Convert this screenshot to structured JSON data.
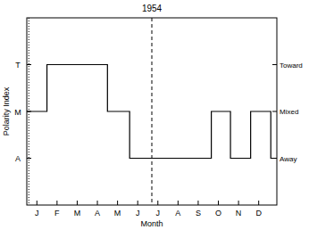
{
  "chart_data": {
    "type": "line",
    "title": "1954",
    "x_label": "Month",
    "y_label": "Polarity Index",
    "xlim": [
      0,
      12.4
    ],
    "xticks": [
      {
        "value": 0.5,
        "label": "J"
      },
      {
        "value": 1.5,
        "label": "F"
      },
      {
        "value": 2.5,
        "label": "M"
      },
      {
        "value": 3.5,
        "label": "A"
      },
      {
        "value": 4.5,
        "label": "M"
      },
      {
        "value": 5.5,
        "label": "J"
      },
      {
        "value": 6.5,
        "label": "J"
      },
      {
        "value": 7.5,
        "label": "A"
      },
      {
        "value": 8.5,
        "label": "S"
      },
      {
        "value": 9.5,
        "label": "O"
      },
      {
        "value": 10.5,
        "label": "N"
      },
      {
        "value": 11.5,
        "label": "D"
      }
    ],
    "ylim": [
      0,
      4
    ],
    "yticks": [
      {
        "value": 1,
        "label": "A"
      },
      {
        "value": 2,
        "label": "M"
      },
      {
        "value": 3,
        "label": "T"
      }
    ],
    "y2lim": [
      0,
      4
    ],
    "y2ticks": [
      {
        "value": 1,
        "label": "Away"
      },
      {
        "value": 2,
        "label": "Mixed"
      },
      {
        "value": 3,
        "label": "Toward"
      }
    ],
    "series": [
      {
        "x": [
          0,
          1.0,
          4.0,
          5.1,
          9.15,
          10.1,
          11.1,
          12.1,
          12.4
        ],
        "values": [
          2,
          3,
          2,
          1,
          2,
          1,
          2,
          1,
          1
        ],
        "color": "#000000",
        "line_style": "step"
      }
    ],
    "vlines": [
      {
        "x": 0.1,
        "line_style": "dotted"
      },
      {
        "x": 6.2,
        "line_style": "dashed"
      }
    ]
  }
}
